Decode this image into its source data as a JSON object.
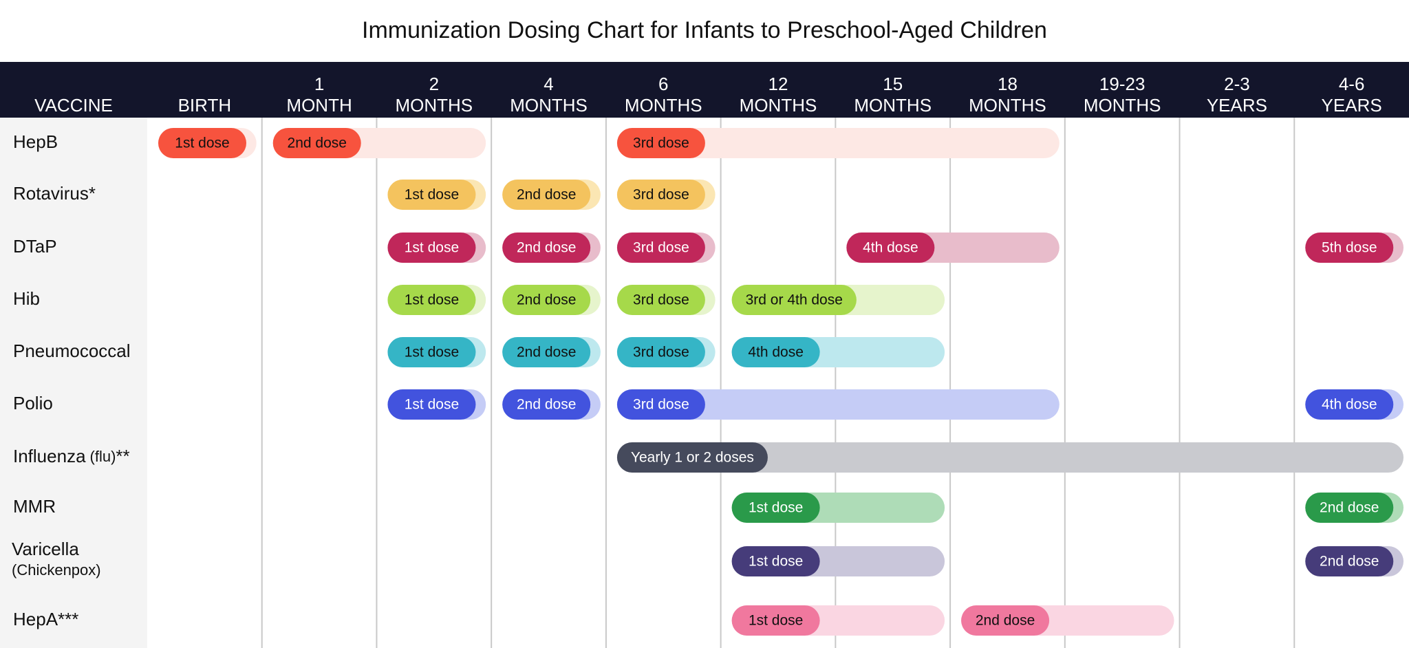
{
  "header": {
    "title": "Immunization Dosing Chart for Infants to Preschool-Aged Children"
  },
  "table": {
    "first_column": "VACCINE",
    "columns": [
      {
        "bottom": "BIRTH"
      },
      {
        "top": "1",
        "bottom": "MONTH"
      },
      {
        "top": "2",
        "bottom": "MONTHS"
      },
      {
        "top": "4",
        "bottom": "MONTHS"
      },
      {
        "top": "6",
        "bottom": "MONTHS"
      },
      {
        "top": "12",
        "bottom": "MONTHS"
      },
      {
        "top": "15",
        "bottom": "MONTHS"
      },
      {
        "top": "18",
        "bottom": "MONTHS"
      },
      {
        "top": "19-23",
        "bottom": "MONTHS"
      },
      {
        "top": "2-3",
        "bottom": "YEARS"
      },
      {
        "top": "4-6",
        "bottom": "YEARS"
      }
    ],
    "rows": [
      {
        "name": "HepB",
        "color": "#f7533e",
        "light": "#fde8e4",
        "text_color": "#111111",
        "doses": [
          {
            "label": "1st dose",
            "col": 0,
            "span": 1
          },
          {
            "label": "2nd dose",
            "col": 1,
            "span": 2
          },
          {
            "label": "3rd dose",
            "col": 4,
            "span": 4
          }
        ]
      },
      {
        "name": "Rotavirus*",
        "color": "#f4c35e",
        "light": "#fbe6b3",
        "text_color": "#111111",
        "doses": [
          {
            "label": "1st dose",
            "col": 2,
            "span": 1
          },
          {
            "label": "2nd dose",
            "col": 3,
            "span": 1
          },
          {
            "label": "3rd dose",
            "col": 4,
            "span": 1
          }
        ]
      },
      {
        "name": "DTaP",
        "color": "#c0275a",
        "light": "#e8bccb",
        "text_color": "#ffffff",
        "doses": [
          {
            "label": "1st dose",
            "col": 2,
            "span": 1
          },
          {
            "label": "2nd dose",
            "col": 3,
            "span": 1
          },
          {
            "label": "3rd dose",
            "col": 4,
            "span": 1
          },
          {
            "label": "4th dose",
            "col": 6,
            "span": 2
          },
          {
            "label": "5th dose",
            "col": 10,
            "span": 1
          }
        ]
      },
      {
        "name": "Hib",
        "color": "#a6d94a",
        "light": "#e6f4cc",
        "text_color": "#111111",
        "doses": [
          {
            "label": "1st dose",
            "col": 2,
            "span": 1
          },
          {
            "label": "2nd dose",
            "col": 3,
            "span": 1
          },
          {
            "label": "3rd dose",
            "col": 4,
            "span": 1
          },
          {
            "label": "3rd or 4th dose",
            "col": 5,
            "span": 2
          }
        ]
      },
      {
        "name": "Pneumococcal",
        "color": "#35b5c6",
        "light": "#bde8ee",
        "text_color": "#111111",
        "doses": [
          {
            "label": "1st dose",
            "col": 2,
            "span": 1
          },
          {
            "label": "2nd dose",
            "col": 3,
            "span": 1
          },
          {
            "label": "3rd dose",
            "col": 4,
            "span": 1
          },
          {
            "label": "4th dose",
            "col": 5,
            "span": 2
          }
        ]
      },
      {
        "name": "Polio",
        "color": "#4253de",
        "light": "#c5ccf6",
        "text_color": "#ffffff",
        "doses": [
          {
            "label": "1st dose",
            "col": 2,
            "span": 1
          },
          {
            "label": "2nd dose",
            "col": 3,
            "span": 1
          },
          {
            "label": "3rd dose",
            "col": 4,
            "span": 4
          },
          {
            "label": "4th dose",
            "col": 10,
            "span": 1
          }
        ]
      },
      {
        "name": "Influenza",
        "note": "(flu)",
        "suffix": "**",
        "color": "#454a5c",
        "light": "#c9cacf",
        "text_color": "#ffffff",
        "doses": [
          {
            "label": "Yearly 1 or 2 doses",
            "col": 4,
            "span": 7
          }
        ]
      },
      {
        "name": "MMR",
        "color": "#2a9a4a",
        "light": "#aedcb7",
        "text_color": "#ffffff",
        "doses": [
          {
            "label": "1st dose",
            "col": 5,
            "span": 2
          },
          {
            "label": "2nd dose",
            "col": 10,
            "span": 1
          }
        ]
      },
      {
        "name": "Varicella",
        "subtitle": "(Chickenpox)",
        "color": "#463c7a",
        "light": "#c9c6da",
        "text_color": "#ffffff",
        "doses": [
          {
            "label": "1st dose",
            "col": 5,
            "span": 2
          },
          {
            "label": "2nd dose",
            "col": 10,
            "span": 1
          }
        ]
      },
      {
        "name": "HepA***",
        "color": "#f0789e",
        "light": "#fad6e2",
        "text_color": "#111111",
        "doses": [
          {
            "label": "1st dose",
            "col": 5,
            "span": 2
          },
          {
            "label": "2nd dose",
            "col": 7,
            "span": 2
          }
        ]
      }
    ]
  }
}
